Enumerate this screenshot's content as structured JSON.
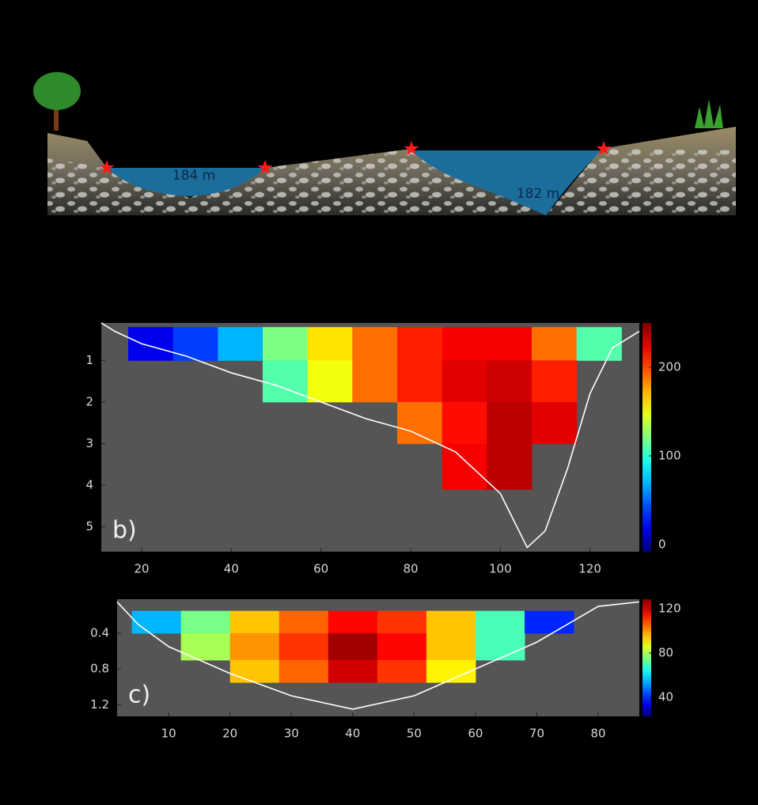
{
  "illustration": {
    "labels": [
      "184 m",
      "182 m"
    ]
  },
  "chart_data": [
    {
      "type": "heatmap",
      "label": "b)",
      "colormap": "jet",
      "y_inverted": true,
      "xlim": [
        11,
        131
      ],
      "ylim": [
        0.1,
        5.6
      ],
      "xticks": [
        20,
        40,
        60,
        80,
        100,
        120
      ],
      "yticks": [
        1,
        2,
        3,
        4,
        5
      ],
      "clim": [
        -8,
        250
      ],
      "cticks": [
        0,
        100,
        200
      ],
      "x_edges": [
        17,
        27,
        37,
        47,
        57,
        67,
        77,
        87,
        97,
        107,
        117,
        127
      ],
      "y_edges": [
        0.2,
        1,
        2,
        3,
        4.1
      ],
      "z": [
        [
          20,
          40,
          70,
          120,
          160,
          190,
          210,
          220,
          220,
          190,
          110
        ],
        [
          null,
          null,
          null,
          110,
          150,
          190,
          210,
          225,
          230,
          210,
          null
        ],
        [
          null,
          null,
          null,
          null,
          null,
          null,
          190,
          215,
          235,
          225,
          null
        ],
        [
          null,
          null,
          null,
          null,
          null,
          null,
          null,
          220,
          235,
          null,
          null
        ]
      ],
      "bed": {
        "color": "#ffffff",
        "x": [
          11,
          14,
          20,
          30,
          40,
          50,
          60,
          70,
          80,
          90,
          100,
          106,
          110,
          115,
          120,
          125,
          131
        ],
        "depth": [
          0.1,
          0.3,
          0.6,
          0.9,
          1.3,
          1.6,
          2.0,
          2.4,
          2.7,
          3.2,
          4.2,
          5.5,
          5.1,
          3.6,
          1.8,
          0.7,
          0.3
        ]
      }
    },
    {
      "type": "heatmap",
      "label": "c)",
      "colormap": "jet",
      "y_inverted": true,
      "xlim": [
        1.6,
        86.7
      ],
      "ylim": [
        0.02,
        1.33
      ],
      "xticks": [
        10,
        20,
        30,
        40,
        50,
        60,
        70,
        80
      ],
      "yticks": [
        0.4,
        0.8,
        1.2
      ],
      "clim": [
        22.9,
        128.6
      ],
      "cticks": [
        40,
        80,
        120
      ],
      "x_edges": [
        4,
        12,
        20,
        28,
        36,
        44,
        52,
        60,
        68,
        76
      ],
      "y_edges": [
        0.15,
        0.4,
        0.7,
        0.95
      ],
      "z": [
        [
          55,
          75,
          95,
          105,
          115,
          110,
          95,
          70,
          40
        ],
        [
          null,
          80,
          100,
          110,
          125,
          115,
          95,
          70,
          null
        ],
        [
          null,
          null,
          95,
          105,
          120,
          110,
          90,
          null,
          null
        ]
      ],
      "bed": {
        "color": "#ffffff",
        "x": [
          1.6,
          5,
          10,
          20,
          30,
          40,
          50,
          60,
          70,
          75,
          80,
          86.7
        ],
        "depth": [
          0.05,
          0.3,
          0.55,
          0.85,
          1.1,
          1.25,
          1.1,
          0.8,
          0.5,
          0.3,
          0.1,
          0.05
        ]
      }
    }
  ]
}
